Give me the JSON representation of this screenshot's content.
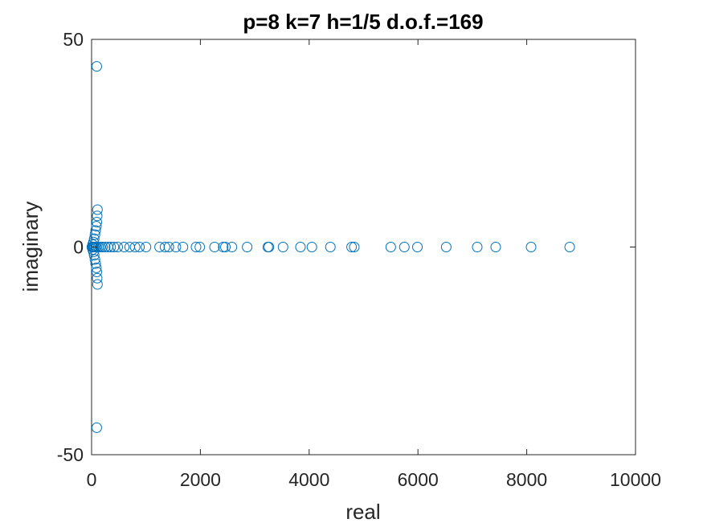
{
  "chart_data": {
    "type": "scatter",
    "title": "p=8 k=7 h=1/5 d.o.f.=169",
    "xlabel": "real",
    "ylabel": "imaginary",
    "xlim": [
      0,
      10000
    ],
    "ylim": [
      -50,
      50
    ],
    "xticks": [
      "0",
      "2000",
      "4000",
      "6000",
      "8000",
      "10000"
    ],
    "yticks": [
      "50",
      "0",
      "-50"
    ],
    "marker": "open-circle",
    "grid": false,
    "colors": {
      "marker": "#0072BD",
      "axes": "#262626"
    },
    "series": [
      {
        "points": [
          [
            95,
            43.5
          ],
          [
            95,
            -43.5
          ],
          [
            108,
            9
          ],
          [
            108,
            -9
          ],
          [
            103,
            7.5
          ],
          [
            103,
            -7.5
          ],
          [
            96,
            6
          ],
          [
            96,
            -6
          ],
          [
            88,
            5
          ],
          [
            88,
            -5
          ],
          [
            75,
            4
          ],
          [
            75,
            -4
          ],
          [
            62,
            3
          ],
          [
            62,
            -3
          ],
          [
            48,
            2
          ],
          [
            48,
            -2
          ],
          [
            35,
            1.2
          ],
          [
            35,
            -1.2
          ],
          [
            20,
            0.6
          ],
          [
            20,
            -0.6
          ],
          [
            5,
            0
          ],
          [
            12,
            0
          ],
          [
            22,
            0
          ],
          [
            35,
            0
          ],
          [
            50,
            0
          ],
          [
            70,
            0
          ],
          [
            95,
            0
          ],
          [
            125,
            0
          ],
          [
            160,
            0
          ],
          [
            200,
            0
          ],
          [
            250,
            0
          ],
          [
            300,
            0
          ],
          [
            350,
            0
          ],
          [
            410,
            0
          ],
          [
            480,
            0
          ],
          [
            600,
            0
          ],
          [
            700,
            0
          ],
          [
            800,
            0
          ],
          [
            880,
            0
          ],
          [
            1000,
            0
          ],
          [
            1250,
            0
          ],
          [
            1350,
            0
          ],
          [
            1420,
            0
          ],
          [
            1550,
            0
          ],
          [
            1680,
            0
          ],
          [
            1920,
            0
          ],
          [
            1990,
            0
          ],
          [
            2260,
            0
          ],
          [
            2420,
            0
          ],
          [
            2460,
            0
          ],
          [
            2580,
            0
          ],
          [
            2860,
            0
          ],
          [
            3240,
            0
          ],
          [
            3260,
            0
          ],
          [
            3520,
            0
          ],
          [
            3840,
            0
          ],
          [
            4050,
            0
          ],
          [
            4390,
            0
          ],
          [
            4780,
            0
          ],
          [
            4830,
            0
          ],
          [
            5500,
            0
          ],
          [
            5750,
            0
          ],
          [
            5990,
            0
          ],
          [
            6520,
            0
          ],
          [
            7090,
            0
          ],
          [
            7430,
            0
          ],
          [
            8080,
            0
          ],
          [
            8790,
            0
          ]
        ]
      }
    ]
  }
}
